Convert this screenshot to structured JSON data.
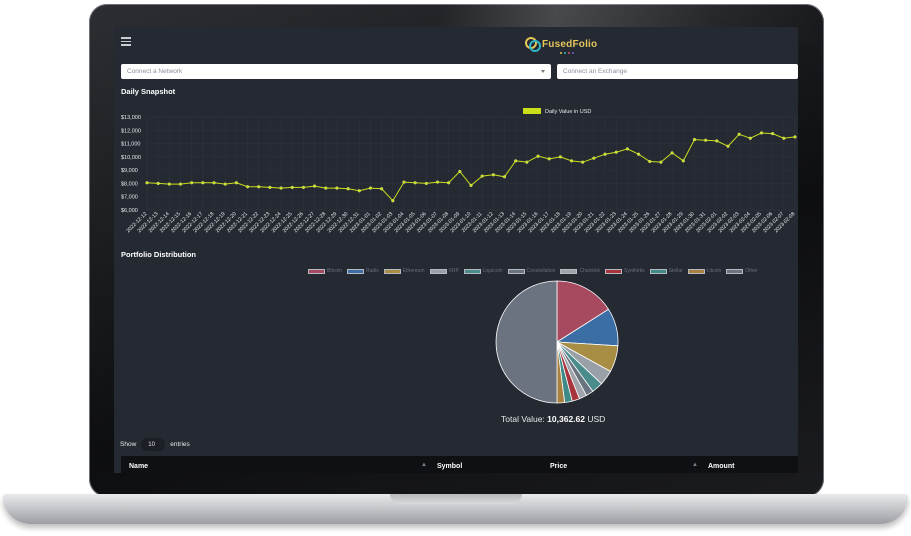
{
  "app": {
    "brand": "FusedFolio",
    "brand_colors": [
      "#e4c65b",
      "#2fb7c7",
      "#d64d7a",
      "#7a5cd6"
    ]
  },
  "selects": {
    "network_placeholder": "Connect a Network",
    "exchange_placeholder": "Connect an Exchange"
  },
  "daily_snapshot": {
    "title": "Daily Snapshot",
    "legend_label": "Daily Value in USD",
    "line_color": "#c8df1a"
  },
  "portfolio": {
    "title": "Portfolio Distribution",
    "legend": [
      {
        "name": "Bitcoin",
        "color": "#a84a5f"
      },
      {
        "name": "Radix",
        "color": "#3a6ea5"
      },
      {
        "name": "Ethereum",
        "color": "#a88d45"
      },
      {
        "name": "XRP",
        "color": "#9aa0a8"
      },
      {
        "name": "Liquicoin",
        "color": "#4a8c8c"
      },
      {
        "name": "Constellation",
        "color": "#6a7380"
      },
      {
        "name": "Chainlink",
        "color": "#a0a4aa"
      },
      {
        "name": "Synthetix",
        "color": "#a8343e"
      },
      {
        "name": "Stellar",
        "color": "#3d8a87"
      },
      {
        "name": "Litcoin",
        "color": "#a8803f"
      },
      {
        "name": "Other",
        "color": "#6b7280"
      }
    ],
    "total_label": "Total Value:",
    "total_value": "10,362.62",
    "total_unit": "USD"
  },
  "table": {
    "show_label": "Show",
    "entries_value": "10",
    "entries_label": "entries",
    "columns": [
      "Name",
      "Symbol",
      "Price",
      "Amount"
    ]
  },
  "chart_data": [
    {
      "type": "line",
      "title": "Daily Snapshot",
      "series": [
        {
          "name": "Daily Value in USD",
          "values": [
            8050,
            8000,
            7950,
            7950,
            8050,
            8050,
            8050,
            7950,
            8050,
            7750,
            7750,
            7700,
            7650,
            7700,
            7700,
            7800,
            7650,
            7650,
            7600,
            7450,
            7650,
            7600,
            6700,
            8100,
            8050,
            8000,
            8100,
            8050,
            8900,
            7850,
            8550,
            8650,
            8500,
            9700,
            9600,
            10050,
            9850,
            10000,
            9700,
            9600,
            9900,
            10200,
            10350,
            10600,
            10200,
            9650,
            9600,
            10300,
            9700,
            11300,
            11250,
            11200,
            10800,
            11700,
            11400,
            11800,
            11750,
            11400,
            11500
          ]
        }
      ],
      "x": [
        "2022-12-12",
        "2022-12-13",
        "2022-12-14",
        "2022-12-15",
        "2022-12-16",
        "2022-12-17",
        "2022-12-18",
        "2022-12-19",
        "2022-12-20",
        "2022-12-21",
        "2022-12-22",
        "2022-12-23",
        "2022-12-24",
        "2022-12-25",
        "2022-12-26",
        "2022-12-27",
        "2022-12-28",
        "2022-12-29",
        "2022-12-30",
        "2022-12-31",
        "2023-01-01",
        "2023-01-02",
        "2023-01-03",
        "2023-01-04",
        "2023-01-05",
        "2023-01-06",
        "2023-01-07",
        "2023-01-08",
        "2023-01-09",
        "2023-01-10",
        "2023-01-11",
        "2023-01-12",
        "2023-01-13",
        "2023-01-14",
        "2023-01-15",
        "2023-01-16",
        "2023-01-17",
        "2023-01-18",
        "2023-01-19",
        "2023-01-20",
        "2023-01-21",
        "2023-01-22",
        "2023-01-23",
        "2023-01-24",
        "2023-01-25",
        "2023-01-26",
        "2023-01-27",
        "2023-01-28",
        "2023-01-29",
        "2023-01-30",
        "2023-01-31",
        "2023-02-01",
        "2023-02-02",
        "2023-02-03",
        "2023-02-04",
        "2023-02-05",
        "2023-02-06",
        "2023-02-07",
        "2023-02-08"
      ],
      "y_ticks": [
        "$13,000",
        "$12,000",
        "$11,000",
        "$10,000",
        "$9,000",
        "$8,000",
        "$7,000",
        "$6,000"
      ],
      "ylim": [
        6000,
        13000
      ],
      "grid": true,
      "legend_position": "top"
    },
    {
      "type": "pie",
      "title": "Portfolio Distribution",
      "labels": [
        "Bitcoin",
        "Radix",
        "Ethereum",
        "XRP",
        "Liquicoin",
        "Constellation",
        "Chainlink",
        "Synthetix",
        "Stellar",
        "Litcoin",
        "Other"
      ],
      "values": [
        16,
        10,
        7,
        4,
        3,
        2,
        2,
        2,
        2,
        2,
        50
      ],
      "colors": [
        "#a84a5f",
        "#3a6ea5",
        "#a88d45",
        "#9aa0a8",
        "#4a8c8c",
        "#6a7380",
        "#a0a4aa",
        "#a8343e",
        "#3d8a87",
        "#a8803f",
        "#6b7280"
      ]
    }
  ]
}
